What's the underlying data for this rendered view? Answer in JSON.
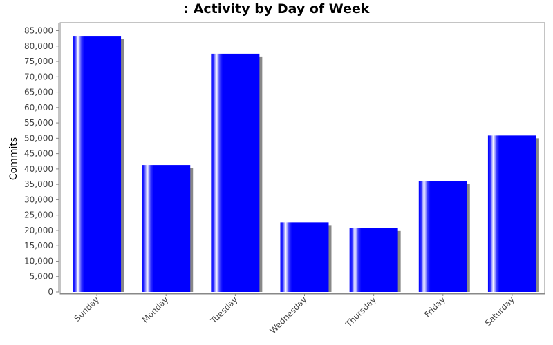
{
  "chart_data": {
    "type": "bar",
    "title": ": Activity by Day of Week",
    "xlabel": "",
    "ylabel": "Commits",
    "categories": [
      "Sunday",
      "Monday",
      "Tuesday",
      "Wednesday",
      "Thursday",
      "Friday",
      "Saturday"
    ],
    "values": [
      83300,
      41300,
      77500,
      22600,
      20700,
      36000,
      50900
    ],
    "ylim": [
      0,
      88000
    ],
    "yticks": [
      0,
      5000,
      10000,
      15000,
      20000,
      25000,
      30000,
      35000,
      40000,
      45000,
      50000,
      55000,
      60000,
      65000,
      70000,
      75000,
      80000,
      85000
    ],
    "ytick_labels": [
      "0",
      "5,000",
      "10,000",
      "15,000",
      "20,000",
      "25,000",
      "30,000",
      "35,000",
      "40,000",
      "45,000",
      "50,000",
      "55,000",
      "60,000",
      "65,000",
      "70,000",
      "75,000",
      "80,000",
      "85,000"
    ],
    "grid": false,
    "legend": "none",
    "bar_color": "#0000ff",
    "shadow_color": "#888888",
    "axis_color": "#888888"
  }
}
